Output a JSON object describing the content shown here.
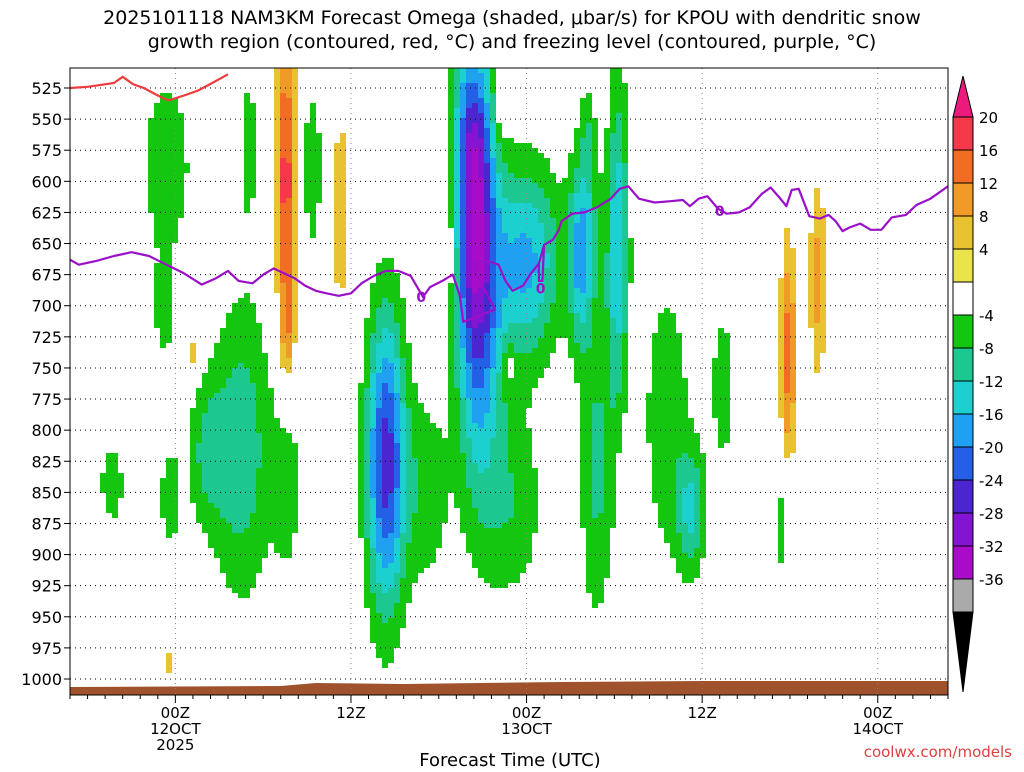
{
  "chart_data": {
    "type": "heatmap",
    "title_line1": "2025101118 NAM3KM Forecast Omega (shaded, μbar/s) for KPOU with dendritic snow",
    "title_line2": "growth region (contoured, red, °C) and freezing level (contoured, purple, °C)",
    "xlabel": "Forecast Time (UTC)",
    "ylabel": "",
    "credit": "coolwx.com/models",
    "y_ticks": [
      525,
      550,
      575,
      600,
      625,
      650,
      675,
      700,
      725,
      750,
      775,
      800,
      825,
      850,
      875,
      900,
      925,
      950,
      975,
      1000
    ],
    "ylim": [
      1000,
      510
    ],
    "xlim_hours": [
      -6,
      44
    ],
    "x_ticks": [
      {
        "hour": 0,
        "line1": "00Z",
        "line2": "12OCT",
        "line3": "2025"
      },
      {
        "hour": 10,
        "line1": "12Z",
        "line2": "",
        "line3": ""
      },
      {
        "hour": 20,
        "line1": "00Z",
        "line2": "13OCT",
        "line3": ""
      },
      {
        "hour": 30,
        "line1": "12Z",
        "line2": "",
        "line3": ""
      },
      {
        "hour": 40,
        "line1": "00Z",
        "line2": "14OCT",
        "line3": ""
      }
    ],
    "colorbar": {
      "labels": [
        "20",
        "16",
        "12",
        "8",
        "4",
        "-4",
        "-8",
        "-12",
        "-16",
        "-20",
        "-24",
        "-28",
        "-32",
        "-36"
      ],
      "colors": [
        "#ec1a7d",
        "#f5394a",
        "#f16d24",
        "#f09a28",
        "#e9c232",
        "#eae34a",
        "#ffffff",
        "#14c60f",
        "#1dc890",
        "#1bd0cf",
        "#20a0f0",
        "#2360e6",
        "#4a25d0",
        "#8315d2",
        "#a80cc8",
        "#aaaaaa",
        "#000000"
      ]
    },
    "omega_fields": [
      {
        "hour": -3.6,
        "p": 843,
        "sx": 0.6,
        "sp": 30,
        "v": -6
      },
      {
        "hour": -0.5,
        "p": 588,
        "sx": 1.1,
        "sp": 55,
        "v": -7
      },
      {
        "hour": -0.6,
        "p": 705,
        "sx": 0.5,
        "sp": 30,
        "v": -6
      },
      {
        "hour": -0.3,
        "p": 855,
        "sx": 0.5,
        "sp": 35,
        "v": -6
      },
      {
        "hour": 1.0,
        "p": 740,
        "sx": 0.25,
        "sp": 15,
        "v": 6
      },
      {
        "hour": 1.8,
        "p": 818,
        "sx": 0.8,
        "sp": 42,
        "v": -8
      },
      {
        "hour": 3.8,
        "p": 815,
        "sx": 1.2,
        "sp": 85,
        "v": -11
      },
      {
        "hour": 6.4,
        "p": 845,
        "sx": 0.6,
        "sp": 55,
        "v": -6
      },
      {
        "hour": 4.2,
        "p": 570,
        "sx": 0.35,
        "sp": 50,
        "v": -6
      },
      {
        "hour": 6.3,
        "p": 600,
        "sx": 0.4,
        "sp": 88,
        "v": 18
      },
      {
        "hour": 6.4,
        "p": 718,
        "sx": 0.28,
        "sp": 28,
        "v": 7
      },
      {
        "hour": 9.4,
        "p": 625,
        "sx": 0.42,
        "sp": 75,
        "v": 6
      },
      {
        "hour": 7.8,
        "p": 590,
        "sx": 0.5,
        "sp": 60,
        "v": -6
      },
      {
        "hour": 12.0,
        "p": 825,
        "sx": 0.8,
        "sp": 85,
        "v": -26
      },
      {
        "hour": 14.3,
        "p": 850,
        "sx": 0.95,
        "sp": 55,
        "v": -7
      },
      {
        "hour": 15.5,
        "p": 655,
        "sx": 0.4,
        "sp": 25,
        "v": 5
      },
      {
        "hour": 17.0,
        "p": 590,
        "sx": 0.75,
        "sp": 120,
        "v": -28
      },
      {
        "hour": 17.5,
        "p": 720,
        "sx": 0.95,
        "sp": 110,
        "v": -12
      },
      {
        "hour": 18.6,
        "p": 530,
        "sx": 0.3,
        "sp": 20,
        "v": 8
      },
      {
        "hour": 20.0,
        "p": 665,
        "sx": 1.4,
        "sp": 55,
        "v": -17
      },
      {
        "hour": 19.3,
        "p": 860,
        "sx": 1.2,
        "sp": 55,
        "v": -7
      },
      {
        "hour": 19.0,
        "p": 745,
        "sx": 0.2,
        "sp": 15,
        "v": 6
      },
      {
        "hour": 23.3,
        "p": 640,
        "sx": 0.6,
        "sp": 55,
        "v": -11
      },
      {
        "hour": 24.0,
        "p": 830,
        "sx": 0.7,
        "sp": 90,
        "v": -9
      },
      {
        "hour": 23.5,
        "p": 560,
        "sx": 0.3,
        "sp": 30,
        "v": -5
      },
      {
        "hour": 22.7,
        "p": 865,
        "sx": 0.2,
        "sp": 35,
        "v": 5
      },
      {
        "hour": 25.2,
        "p": 650,
        "sx": 0.45,
        "sp": 95,
        "v": -15
      },
      {
        "hour": 28.0,
        "p": 790,
        "sx": 1.0,
        "sp": 85,
        "v": -7
      },
      {
        "hour": 28.0,
        "p": 770,
        "sx": 0.25,
        "sp": 22,
        "v": 0
      },
      {
        "hour": 29.4,
        "p": 865,
        "sx": 0.6,
        "sp": 35,
        "v": -12
      },
      {
        "hour": 31.2,
        "p": 765,
        "sx": 0.55,
        "sp": 55,
        "v": -6
      },
      {
        "hour": 34.5,
        "p": 875,
        "sx": 0.4,
        "sp": 40,
        "v": -6
      },
      {
        "hour": 35.1,
        "p": 598,
        "sx": 0.2,
        "sp": 12,
        "v": -5
      },
      {
        "hour": 34.9,
        "p": 740,
        "sx": 0.32,
        "sp": 65,
        "v": 14
      },
      {
        "hour": 36.6,
        "p": 680,
        "sx": 0.35,
        "sp": 55,
        "v": 10
      },
      {
        "hour": 41.5,
        "p": 770,
        "sx": 0.15,
        "sp": 25,
        "v": 5
      },
      {
        "hour": 41.5,
        "p": 912,
        "sx": 0.12,
        "sp": 15,
        "v": 5
      },
      {
        "hour": 25.5,
        "p": 860,
        "sx": 0.15,
        "sp": 40,
        "v": 5
      },
      {
        "hour": -0.3,
        "p": 987,
        "sx": 0.25,
        "sp": 10,
        "v": 5
      },
      {
        "hour": 17.2,
        "p": 515,
        "sx": 0.55,
        "sp": 25,
        "v": 6
      },
      {
        "hour": 23.0,
        "p": 670,
        "sx": 0.4,
        "sp": 45,
        "v": -8
      }
    ],
    "freezing_level": {
      "label": "0",
      "points": [
        [
          -6,
          663
        ],
        [
          -5.5,
          667
        ],
        [
          -4.5,
          664
        ],
        [
          -3.5,
          660
        ],
        [
          -2.5,
          657
        ],
        [
          -1.5,
          660
        ],
        [
          -0.5,
          667
        ],
        [
          0.5,
          674
        ],
        [
          1.5,
          683
        ],
        [
          2.3,
          678
        ],
        [
          3.0,
          672
        ],
        [
          3.6,
          680
        ],
        [
          4.4,
          682
        ],
        [
          5.0,
          675
        ],
        [
          5.6,
          670
        ],
        [
          6.2,
          674
        ],
        [
          6.8,
          678
        ],
        [
          7.4,
          684
        ],
        [
          8.0,
          688
        ],
        [
          8.6,
          690
        ],
        [
          9.3,
          692
        ],
        [
          10.0,
          690
        ],
        [
          10.6,
          682
        ],
        [
          11.3,
          676
        ],
        [
          12.0,
          672
        ],
        [
          12.7,
          672
        ],
        [
          13.4,
          676
        ],
        [
          14.1,
          693
        ],
        [
          14.5,
          685
        ],
        [
          15.2,
          680
        ],
        [
          15.8,
          675
        ],
        [
          16.2,
          692
        ],
        [
          16.4,
          713
        ],
        [
          17.3,
          708
        ],
        [
          18.2,
          703
        ],
        [
          17.8,
          692
        ],
        [
          17.3,
          680
        ],
        [
          17.0,
          666
        ],
        [
          17.8,
          664
        ],
        [
          18.4,
          667
        ],
        [
          18.8,
          680
        ],
        [
          19.2,
          688
        ],
        [
          19.8,
          684
        ],
        [
          20.2,
          675
        ],
        [
          20.7,
          666
        ],
        [
          21.0,
          651
        ],
        [
          21.5,
          647
        ],
        [
          21.8,
          640
        ],
        [
          22.0,
          632
        ],
        [
          22.6,
          626
        ],
        [
          23.3,
          625
        ],
        [
          24.0,
          621
        ],
        [
          24.8,
          614
        ],
        [
          25.3,
          606
        ],
        [
          25.8,
          604
        ],
        [
          26.4,
          614
        ],
        [
          27.3,
          617
        ],
        [
          28.2,
          616
        ],
        [
          28.9,
          615
        ],
        [
          29.3,
          620
        ],
        [
          29.8,
          614
        ],
        [
          30.3,
          612
        ],
        [
          30.9,
          622
        ],
        [
          31.4,
          626
        ],
        [
          32.1,
          625
        ],
        [
          32.7,
          621
        ],
        [
          33.4,
          610
        ],
        [
          33.9,
          605
        ],
        [
          34.4,
          613
        ],
        [
          34.8,
          620
        ],
        [
          35.1,
          607
        ],
        [
          35.5,
          606
        ],
        [
          36.1,
          628
        ],
        [
          36.7,
          630
        ],
        [
          37.2,
          627
        ],
        [
          37.6,
          632
        ],
        [
          38.0,
          640
        ],
        [
          38.4,
          637
        ],
        [
          39.0,
          634
        ],
        [
          39.6,
          639
        ],
        [
          40.2,
          639
        ],
        [
          40.8,
          629
        ],
        [
          41.6,
          627
        ],
        [
          42.2,
          619
        ],
        [
          43.0,
          614
        ],
        [
          44,
          604
        ]
      ],
      "spike": [
        [
          20.7,
          666
        ],
        [
          20.7,
          680
        ],
        [
          20.9,
          680
        ],
        [
          21.0,
          651
        ]
      ]
    },
    "dgz_line": {
      "points": [
        [
          -6,
          525
        ],
        [
          -5.0,
          524
        ],
        [
          -4.0,
          522
        ],
        [
          -3.5,
          521
        ],
        [
          -3.0,
          516
        ],
        [
          -2.4,
          522
        ],
        [
          -1.8,
          525
        ],
        [
          -1.0,
          531
        ],
        [
          -0.4,
          535
        ],
        [
          0.5,
          531
        ],
        [
          1.3,
          527
        ],
        [
          2.1,
          521
        ],
        [
          3.0,
          514
        ]
      ]
    },
    "terrain": {
      "color": "#a0522d",
      "top_p": 1004
    }
  }
}
